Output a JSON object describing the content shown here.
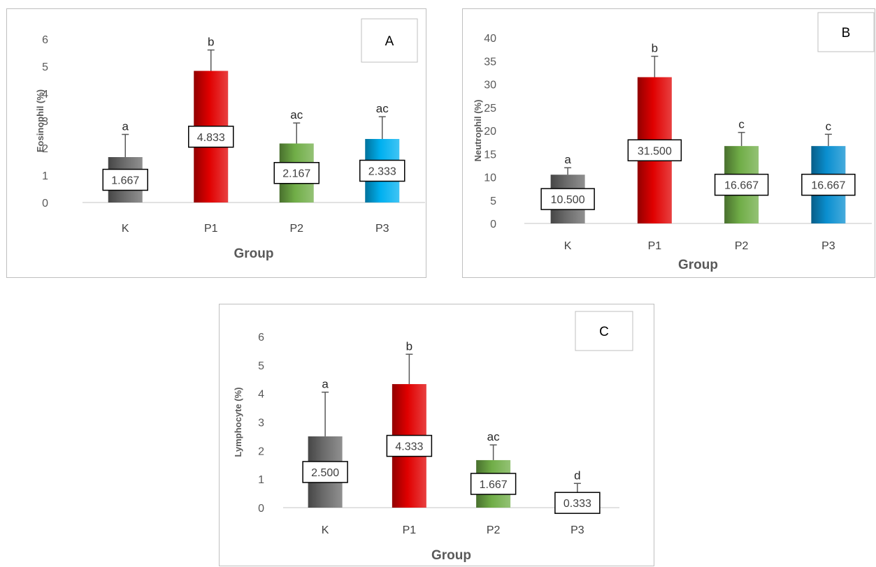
{
  "chart_data": [
    {
      "type": "bar",
      "panel_label": "A",
      "title": "",
      "xlabel": "Group",
      "ylabel": "Eosinophil (%)",
      "categories": [
        "K",
        "P1",
        "P2",
        "P3"
      ],
      "values": [
        1.667,
        4.833,
        2.167,
        2.333
      ],
      "value_labels": [
        "1.667",
        "4.833",
        "2.167",
        "2.333"
      ],
      "error_upper": [
        2.5,
        5.6,
        2.92,
        3.15
      ],
      "significance": [
        "a",
        "b",
        "ac",
        "ac"
      ],
      "colors": [
        "#6b6b6b",
        "#e00000",
        "#70ad47",
        "#00b0f0"
      ],
      "yticks": [
        "0",
        "1",
        "2",
        "3",
        "4",
        "5",
        "6"
      ],
      "ylim": [
        0,
        6
      ],
      "grid": false,
      "legend": "none"
    },
    {
      "type": "bar",
      "panel_label": "B",
      "title": "",
      "xlabel": "Group",
      "ylabel": "Neutrophil  (%)",
      "categories": [
        "K",
        "P1",
        "P2",
        "P3"
      ],
      "values": [
        10.5,
        31.5,
        16.667,
        16.667
      ],
      "value_labels": [
        "10.500",
        "31.500",
        "16.667",
        "16.667"
      ],
      "error_upper": [
        12.0,
        36.0,
        19.6,
        19.2
      ],
      "significance": [
        "a",
        "b",
        "c",
        "c"
      ],
      "colors": [
        "#6b6b6b",
        "#e00000",
        "#70ad47",
        "#0a8fd0"
      ],
      "yticks": [
        "0",
        "5",
        "10",
        "15",
        "20",
        "25",
        "30",
        "35",
        "40"
      ],
      "ylim": [
        0,
        40
      ],
      "grid": false,
      "legend": "none"
    },
    {
      "type": "bar",
      "panel_label": "C",
      "title": "",
      "xlabel": "Group",
      "ylabel": "Lymphocyte (%)",
      "categories": [
        "K",
        "P1",
        "P2",
        "P3"
      ],
      "values": [
        2.5,
        4.333,
        1.667,
        0.333
      ],
      "value_labels": [
        "2.500",
        "4.333",
        "1.667",
        "0.333"
      ],
      "error_upper": [
        4.05,
        5.38,
        2.2,
        0.85
      ],
      "significance": [
        "a",
        "b",
        "ac",
        "d"
      ],
      "colors": [
        "#6b6b6b",
        "#e00000",
        "#70ad47",
        "#0a8fd0"
      ],
      "yticks": [
        "0",
        "1",
        "2",
        "3",
        "4",
        "5",
        "6"
      ],
      "ylim": [
        0,
        6
      ],
      "grid": false,
      "legend": "none"
    }
  ]
}
